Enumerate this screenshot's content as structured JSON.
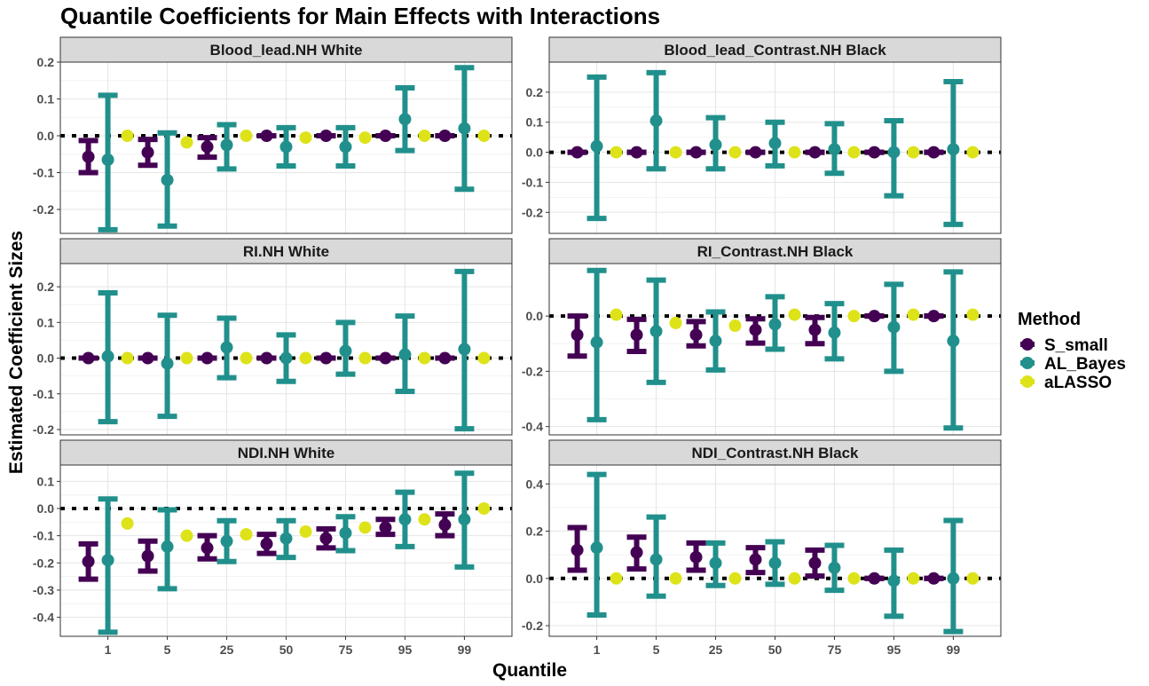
{
  "chart_data": {
    "type": "errorbar",
    "title": "Quantile Coefficients for Main Effects with Interactions",
    "xlabel": "Quantile",
    "ylabel": "Estimated Coefficient Sizes",
    "categories": [
      "1",
      "5",
      "25",
      "50",
      "75",
      "95",
      "99"
    ],
    "legend": {
      "title": "Method",
      "position": "right",
      "items": [
        {
          "name": "S_small",
          "color": "#440154"
        },
        {
          "name": "AL_Bayes",
          "color": "#21908C"
        },
        {
          "name": "aLASSO",
          "color": "#DDE318"
        }
      ]
    },
    "reference_line": 0,
    "panels": [
      {
        "title": "Blood_lead.NH White",
        "ylim": [
          -0.265,
          0.2
        ],
        "yticks": [
          -0.2,
          -0.1,
          0.0,
          0.1,
          0.2
        ],
        "series": [
          {
            "name": "S_small",
            "estimate": [
              -0.057,
              -0.045,
              -0.03,
              0.0,
              0.0,
              0.0,
              0.0
            ],
            "lower": [
              -0.1,
              -0.08,
              -0.058,
              0.0,
              0.0,
              0.0,
              0.0
            ],
            "upper": [
              -0.013,
              -0.01,
              -0.005,
              0.0,
              0.0,
              0.0,
              0.0
            ]
          },
          {
            "name": "AL_Bayes",
            "estimate": [
              -0.065,
              -0.12,
              -0.025,
              -0.03,
              -0.03,
              0.045,
              0.02
            ],
            "lower": [
              -0.255,
              -0.245,
              -0.09,
              -0.082,
              -0.082,
              -0.04,
              -0.145
            ],
            "upper": [
              0.11,
              0.008,
              0.03,
              0.022,
              0.022,
              0.13,
              0.185
            ]
          },
          {
            "name": "aLASSO",
            "estimate": [
              0.0,
              -0.018,
              0.0,
              -0.005,
              -0.005,
              0.0,
              0.0
            ],
            "lower": null,
            "upper": null
          }
        ]
      },
      {
        "title": "Blood_lead_Contrast.NH Black",
        "ylim": [
          -0.27,
          0.3
        ],
        "yticks": [
          -0.2,
          -0.1,
          0.0,
          0.1,
          0.2
        ],
        "series": [
          {
            "name": "S_small",
            "estimate": [
              0.0,
              0.0,
              0.0,
              0.0,
              0.0,
              0.0,
              0.0
            ],
            "lower": [
              0.0,
              0.0,
              0.0,
              0.0,
              0.0,
              0.0,
              0.0
            ],
            "upper": [
              0.0,
              0.0,
              0.0,
              0.0,
              0.0,
              0.0,
              0.0
            ]
          },
          {
            "name": "AL_Bayes",
            "estimate": [
              0.02,
              0.105,
              0.025,
              0.03,
              0.01,
              0.0,
              0.01
            ],
            "lower": [
              -0.22,
              -0.055,
              -0.055,
              -0.045,
              -0.07,
              -0.145,
              -0.24
            ],
            "upper": [
              0.25,
              0.265,
              0.115,
              0.1,
              0.095,
              0.105,
              0.235
            ]
          },
          {
            "name": "aLASSO",
            "estimate": [
              0.0,
              0.0,
              0.0,
              0.0,
              0.0,
              0.0,
              0.0
            ],
            "lower": null,
            "upper": null
          }
        ]
      },
      {
        "title": "RI.NH White",
        "ylim": [
          -0.215,
          0.265
        ],
        "yticks": [
          -0.2,
          -0.1,
          0.0,
          0.1,
          0.2
        ],
        "series": [
          {
            "name": "S_small",
            "estimate": [
              0.0,
              0.0,
              0.0,
              0.0,
              0.0,
              0.0,
              0.0
            ],
            "lower": [
              0.0,
              0.0,
              0.0,
              0.0,
              0.0,
              0.0,
              0.0
            ],
            "upper": [
              0.0,
              0.0,
              0.0,
              0.0,
              0.0,
              0.0,
              0.0
            ]
          },
          {
            "name": "AL_Bayes",
            "estimate": [
              0.005,
              -0.015,
              0.03,
              0.0,
              0.02,
              0.01,
              0.025
            ],
            "lower": [
              -0.178,
              -0.163,
              -0.055,
              -0.065,
              -0.045,
              -0.093,
              -0.198
            ],
            "upper": [
              0.183,
              0.12,
              0.112,
              0.065,
              0.1,
              0.118,
              0.243
            ]
          },
          {
            "name": "aLASSO",
            "estimate": [
              0.0,
              0.0,
              0.0,
              0.0,
              0.0,
              0.0,
              0.0
            ],
            "lower": null,
            "upper": null
          }
        ]
      },
      {
        "title": "RI_Contrast.NH Black",
        "ylim": [
          -0.43,
          0.19
        ],
        "yticks": [
          -0.4,
          -0.2,
          0.0
        ],
        "series": [
          {
            "name": "S_small",
            "estimate": [
              -0.068,
              -0.068,
              -0.068,
              -0.05,
              -0.05,
              0.0,
              0.0
            ],
            "lower": [
              -0.145,
              -0.128,
              -0.108,
              -0.098,
              -0.1,
              0.0,
              0.0
            ],
            "upper": [
              0.0,
              -0.012,
              -0.02,
              -0.01,
              -0.005,
              0.0,
              0.0
            ]
          },
          {
            "name": "AL_Bayes",
            "estimate": [
              -0.095,
              -0.055,
              -0.09,
              -0.03,
              -0.06,
              -0.04,
              -0.09
            ],
            "lower": [
              -0.375,
              -0.24,
              -0.195,
              -0.12,
              -0.155,
              -0.2,
              -0.405
            ],
            "upper": [
              0.165,
              0.13,
              0.015,
              0.07,
              0.045,
              0.115,
              0.16
            ]
          },
          {
            "name": "aLASSO",
            "estimate": [
              0.005,
              -0.025,
              -0.035,
              0.005,
              0.0,
              0.005,
              0.005
            ],
            "lower": null,
            "upper": null
          }
        ]
      },
      {
        "title": "NDI.NH White",
        "ylim": [
          -0.47,
          0.16
        ],
        "yticks": [
          -0.4,
          -0.3,
          -0.2,
          -0.1,
          0.0,
          0.1
        ],
        "series": [
          {
            "name": "S_small",
            "estimate": [
              -0.195,
              -0.175,
              -0.145,
              -0.13,
              -0.11,
              -0.07,
              -0.06
            ],
            "lower": [
              -0.26,
              -0.23,
              -0.185,
              -0.165,
              -0.145,
              -0.095,
              -0.1
            ],
            "upper": [
              -0.13,
              -0.12,
              -0.1,
              -0.095,
              -0.075,
              -0.04,
              -0.02
            ]
          },
          {
            "name": "AL_Bayes",
            "estimate": [
              -0.19,
              -0.14,
              -0.12,
              -0.11,
              -0.09,
              -0.04,
              -0.04
            ],
            "lower": [
              -0.455,
              -0.295,
              -0.195,
              -0.18,
              -0.155,
              -0.14,
              -0.215
            ],
            "upper": [
              0.035,
              -0.005,
              -0.045,
              -0.045,
              -0.03,
              0.06,
              0.13
            ]
          },
          {
            "name": "aLASSO",
            "estimate": [
              -0.055,
              -0.1,
              -0.095,
              -0.085,
              -0.07,
              -0.04,
              0.0
            ],
            "lower": null,
            "upper": null
          }
        ]
      },
      {
        "title": "NDI_Contrast.NH Black",
        "ylim": [
          -0.245,
          0.48
        ],
        "yticks": [
          -0.2,
          0.0,
          0.2,
          0.4
        ],
        "series": [
          {
            "name": "S_small",
            "estimate": [
              0.12,
              0.11,
              0.09,
              0.08,
              0.065,
              0.0,
              0.0
            ],
            "lower": [
              0.035,
              0.04,
              0.035,
              0.025,
              0.01,
              0.0,
              0.0
            ],
            "upper": [
              0.215,
              0.175,
              0.15,
              0.13,
              0.12,
              0.0,
              0.0
            ]
          },
          {
            "name": "AL_Bayes",
            "estimate": [
              0.13,
              0.08,
              0.065,
              0.065,
              0.045,
              -0.01,
              0.0
            ],
            "lower": [
              -0.155,
              -0.075,
              -0.03,
              -0.025,
              -0.05,
              -0.16,
              -0.225
            ],
            "upper": [
              0.44,
              0.26,
              0.15,
              0.155,
              0.14,
              0.12,
              0.245
            ]
          },
          {
            "name": "aLASSO",
            "estimate": [
              0.0,
              0.0,
              0.0,
              0.0,
              0.0,
              0.0,
              0.0
            ],
            "lower": null,
            "upper": null
          }
        ]
      }
    ]
  }
}
